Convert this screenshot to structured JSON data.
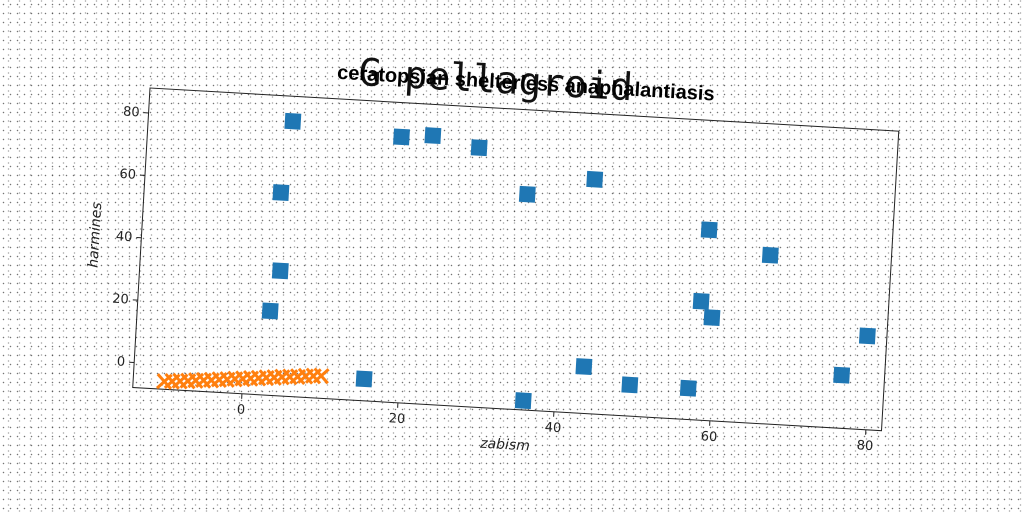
{
  "title": "G pellagroid",
  "chart_data": {
    "type": "scatter",
    "title": "ceratopsian shelterless anaphalantiasis",
    "xlabel": "zabism",
    "ylabel": "harmines",
    "xlim": [
      -14,
      82
    ],
    "ylim": [
      -8,
      88
    ],
    "xticks": [
      0,
      20,
      40,
      60,
      80
    ],
    "yticks": [
      0,
      20,
      40,
      60,
      80
    ],
    "grid": false,
    "series": [
      {
        "color": "#1f77b4",
        "marker": "square",
        "points": [
          [
            4.5,
            80
          ],
          [
            18.5,
            77
          ],
          [
            22.5,
            78
          ],
          [
            28.5,
            75
          ],
          [
            35,
            61
          ],
          [
            43.5,
            67
          ],
          [
            3.5,
            57
          ],
          [
            58.5,
            53
          ],
          [
            66.5,
            46
          ],
          [
            4,
            32
          ],
          [
            3,
            19
          ],
          [
            58,
            30
          ],
          [
            59.5,
            25
          ],
          [
            79.5,
            22
          ],
          [
            76.5,
            9
          ],
          [
            15.5,
            -1
          ],
          [
            43.5,
            7
          ],
          [
            49.5,
            2
          ],
          [
            57,
            2
          ],
          [
            36,
            -5
          ]
        ]
      },
      {
        "color": "#ff7f0e",
        "marker": "x",
        "points": [
          [
            -10,
            -5.5
          ],
          [
            -9,
            -5.3
          ],
          [
            -8,
            -5.1
          ],
          [
            -7,
            -4.9
          ],
          [
            -6,
            -4.6
          ],
          [
            -5,
            -4.4
          ],
          [
            -4,
            -4.2
          ],
          [
            -3,
            -3.9
          ],
          [
            -2,
            -3.7
          ],
          [
            -1,
            -3.4
          ],
          [
            0,
            -3.2
          ],
          [
            1,
            -2.9
          ],
          [
            2,
            -2.7
          ],
          [
            3,
            -2.4
          ],
          [
            4,
            -2.2
          ],
          [
            5,
            -1.9
          ],
          [
            6,
            -1.7
          ],
          [
            7,
            -1.5
          ],
          [
            8,
            -1.2
          ],
          [
            9,
            -1.0
          ],
          [
            10,
            -0.8
          ]
        ]
      }
    ]
  }
}
